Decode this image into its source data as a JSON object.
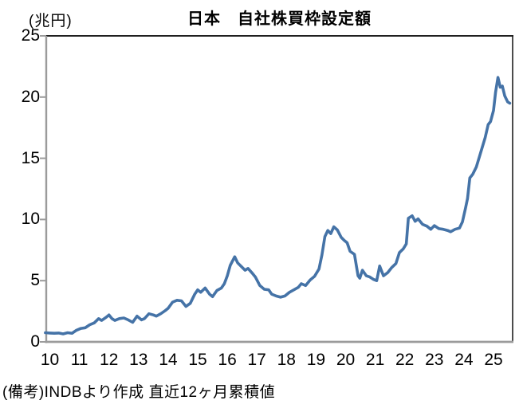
{
  "header": {
    "title": "日本　自社株買枠設定額",
    "y_axis_unit": "(兆円)"
  },
  "footer": {
    "source_note": "(備考)INDBより作成 直近12ヶ月累積値"
  },
  "chart_data": {
    "type": "line",
    "title": "日本　自社株買枠設定額",
    "ylabel": "(兆円)",
    "xlabel": "",
    "ylim": [
      0,
      25
    ],
    "xlim": [
      9.85,
      25.7
    ],
    "y_ticks": [
      0,
      5,
      10,
      15,
      20,
      25
    ],
    "x_tick_years": [
      10,
      11,
      12,
      13,
      14,
      15,
      16,
      17,
      18,
      19,
      20,
      21,
      22,
      23,
      24,
      25
    ],
    "x_tick_labels": [
      "10",
      "11",
      "12",
      "13",
      "14",
      "15",
      "16",
      "17",
      "18",
      "19",
      "20",
      "21",
      "22",
      "23",
      "24",
      "25"
    ],
    "grid": false,
    "legend_position": "none",
    "axis_color": "#9b9b9b",
    "border_color": "#1f1f1f",
    "series": [
      {
        "name": "自社株買枠設定額（直近12ヶ月累積値）",
        "color": "#4573a7",
        "points": [
          [
            9.85,
            0.75
          ],
          [
            10.0,
            0.72
          ],
          [
            10.15,
            0.7
          ],
          [
            10.3,
            0.72
          ],
          [
            10.45,
            0.65
          ],
          [
            10.6,
            0.75
          ],
          [
            10.75,
            0.7
          ],
          [
            10.9,
            0.95
          ],
          [
            11.05,
            1.1
          ],
          [
            11.2,
            1.15
          ],
          [
            11.35,
            1.4
          ],
          [
            11.5,
            1.55
          ],
          [
            11.65,
            1.9
          ],
          [
            11.75,
            1.75
          ],
          [
            11.9,
            2.0
          ],
          [
            12.0,
            2.2
          ],
          [
            12.1,
            1.9
          ],
          [
            12.2,
            1.75
          ],
          [
            12.35,
            1.9
          ],
          [
            12.5,
            1.95
          ],
          [
            12.65,
            1.8
          ],
          [
            12.8,
            1.6
          ],
          [
            12.95,
            2.1
          ],
          [
            13.1,
            1.8
          ],
          [
            13.2,
            1.9
          ],
          [
            13.35,
            2.3
          ],
          [
            13.5,
            2.2
          ],
          [
            13.6,
            2.1
          ],
          [
            13.75,
            2.3
          ],
          [
            13.9,
            2.55
          ],
          [
            14.0,
            2.75
          ],
          [
            14.15,
            3.25
          ],
          [
            14.3,
            3.4
          ],
          [
            14.45,
            3.35
          ],
          [
            14.6,
            2.9
          ],
          [
            14.75,
            3.15
          ],
          [
            14.9,
            3.9
          ],
          [
            15.0,
            4.25
          ],
          [
            15.1,
            4.05
          ],
          [
            15.25,
            4.4
          ],
          [
            15.4,
            3.9
          ],
          [
            15.5,
            3.7
          ],
          [
            15.65,
            4.2
          ],
          [
            15.8,
            4.4
          ],
          [
            15.9,
            4.75
          ],
          [
            16.0,
            5.4
          ],
          [
            16.1,
            6.25
          ],
          [
            16.25,
            6.95
          ],
          [
            16.35,
            6.45
          ],
          [
            16.5,
            6.1
          ],
          [
            16.6,
            5.85
          ],
          [
            16.7,
            6.0
          ],
          [
            16.85,
            5.6
          ],
          [
            16.95,
            5.3
          ],
          [
            17.1,
            4.6
          ],
          [
            17.25,
            4.3
          ],
          [
            17.4,
            4.25
          ],
          [
            17.5,
            3.9
          ],
          [
            17.65,
            3.75
          ],
          [
            17.8,
            3.65
          ],
          [
            17.95,
            3.75
          ],
          [
            18.1,
            4.05
          ],
          [
            18.25,
            4.25
          ],
          [
            18.4,
            4.45
          ],
          [
            18.5,
            4.75
          ],
          [
            18.65,
            4.6
          ],
          [
            18.8,
            5.05
          ],
          [
            18.95,
            5.35
          ],
          [
            19.1,
            5.95
          ],
          [
            19.2,
            7.1
          ],
          [
            19.3,
            8.6
          ],
          [
            19.4,
            9.1
          ],
          [
            19.5,
            8.85
          ],
          [
            19.6,
            9.4
          ],
          [
            19.72,
            9.15
          ],
          [
            19.85,
            8.55
          ],
          [
            19.95,
            8.3
          ],
          [
            20.05,
            8.1
          ],
          [
            20.15,
            7.4
          ],
          [
            20.3,
            7.15
          ],
          [
            20.42,
            5.4
          ],
          [
            20.48,
            5.2
          ],
          [
            20.57,
            5.85
          ],
          [
            20.7,
            5.4
          ],
          [
            20.82,
            5.3
          ],
          [
            20.95,
            5.1
          ],
          [
            21.05,
            5.0
          ],
          [
            21.15,
            6.2
          ],
          [
            21.28,
            5.4
          ],
          [
            21.42,
            5.65
          ],
          [
            21.55,
            6.05
          ],
          [
            21.7,
            6.4
          ],
          [
            21.82,
            7.3
          ],
          [
            21.95,
            7.6
          ],
          [
            22.05,
            8.0
          ],
          [
            22.12,
            10.1
          ],
          [
            22.25,
            10.3
          ],
          [
            22.35,
            9.85
          ],
          [
            22.45,
            10.05
          ],
          [
            22.6,
            9.6
          ],
          [
            22.75,
            9.45
          ],
          [
            22.88,
            9.2
          ],
          [
            23.0,
            9.5
          ],
          [
            23.15,
            9.25
          ],
          [
            23.3,
            9.2
          ],
          [
            23.45,
            9.1
          ],
          [
            23.55,
            9.0
          ],
          [
            23.7,
            9.2
          ],
          [
            23.85,
            9.3
          ],
          [
            23.95,
            9.8
          ],
          [
            24.05,
            10.9
          ],
          [
            24.12,
            11.7
          ],
          [
            24.2,
            13.4
          ],
          [
            24.3,
            13.7
          ],
          [
            24.42,
            14.3
          ],
          [
            24.52,
            15.1
          ],
          [
            24.62,
            15.9
          ],
          [
            24.72,
            16.7
          ],
          [
            24.82,
            17.75
          ],
          [
            24.9,
            18.0
          ],
          [
            25.0,
            18.9
          ],
          [
            25.07,
            20.4
          ],
          [
            25.15,
            21.6
          ],
          [
            25.23,
            20.8
          ],
          [
            25.3,
            20.9
          ],
          [
            25.38,
            20.1
          ],
          [
            25.48,
            19.6
          ],
          [
            25.55,
            19.5
          ]
        ]
      }
    ]
  }
}
